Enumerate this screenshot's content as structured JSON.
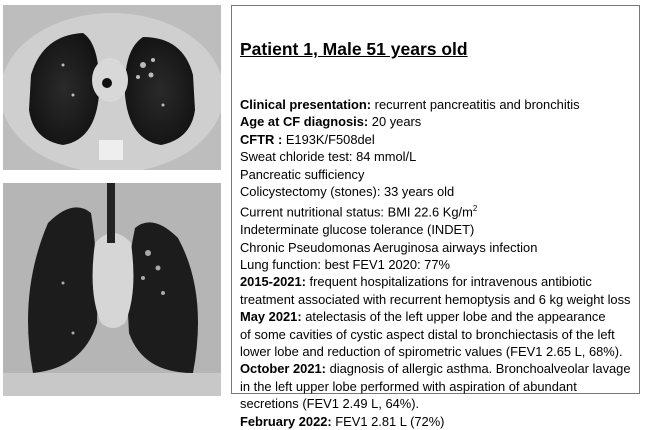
{
  "images": [
    {
      "name": "axial-ct-chest"
    },
    {
      "name": "coronal-ct-chest"
    }
  ],
  "title": "Patient 1, Male 51 years old",
  "lines": [
    {
      "label": "Clinical presentation:",
      "text": " recurrent pancreatitis and bronchitis"
    },
    {
      "label": "Age at CF diagnosis:",
      "text": " 20 years"
    },
    {
      "label": "CFTR :",
      "text": " E193K/F508del"
    },
    {
      "label": "",
      "text": "Sweat chloride test: 84 mmol/L"
    },
    {
      "label": "",
      "text": "Pancreatic sufficiency"
    },
    {
      "label": "",
      "text": "Colicystectomy (stones): 33 years old"
    },
    {
      "label": "",
      "text": "Current nutritional status: BMI 22.6 Kg/m",
      "sup": "2"
    },
    {
      "label": "",
      "text": "Indeterminate glucose tolerance (INDET)"
    },
    {
      "label": "",
      "text": "Chronic Pseudomonas Aeruginosa airways infection"
    },
    {
      "label": "",
      "text": "Lung function: best FEV1 2020: 77%"
    },
    {
      "label": "2015-2021:",
      "text": " frequent hospitalizations for intravenous antibiotic"
    },
    {
      "label": "",
      "text": "treatment associated with recurrent hemoptysis and 6 kg weight loss"
    },
    {
      "label": "May 2021:",
      "text": " atelectasis of the left upper lobe and the appearance"
    },
    {
      "label": "",
      "text": "of some cavities of cystic aspect distal to bronchiectasis of the left"
    },
    {
      "label": "",
      "text": "lower lobe and reduction of spirometric values (FEV1 2.65 L, 68%)."
    },
    {
      "label": "October 2021:",
      "text": " diagnosis of allergic asthma. Bronchoalveolar lavage"
    },
    {
      "label": "",
      "text": "in the left upper lobe performed with aspiration of abundant"
    },
    {
      "label": "",
      "text": "secretions (FEV1 2.49 L, 64%)."
    },
    {
      "label": "February 2022:",
      "text": " FEV1 2.81 L (72%)"
    }
  ]
}
